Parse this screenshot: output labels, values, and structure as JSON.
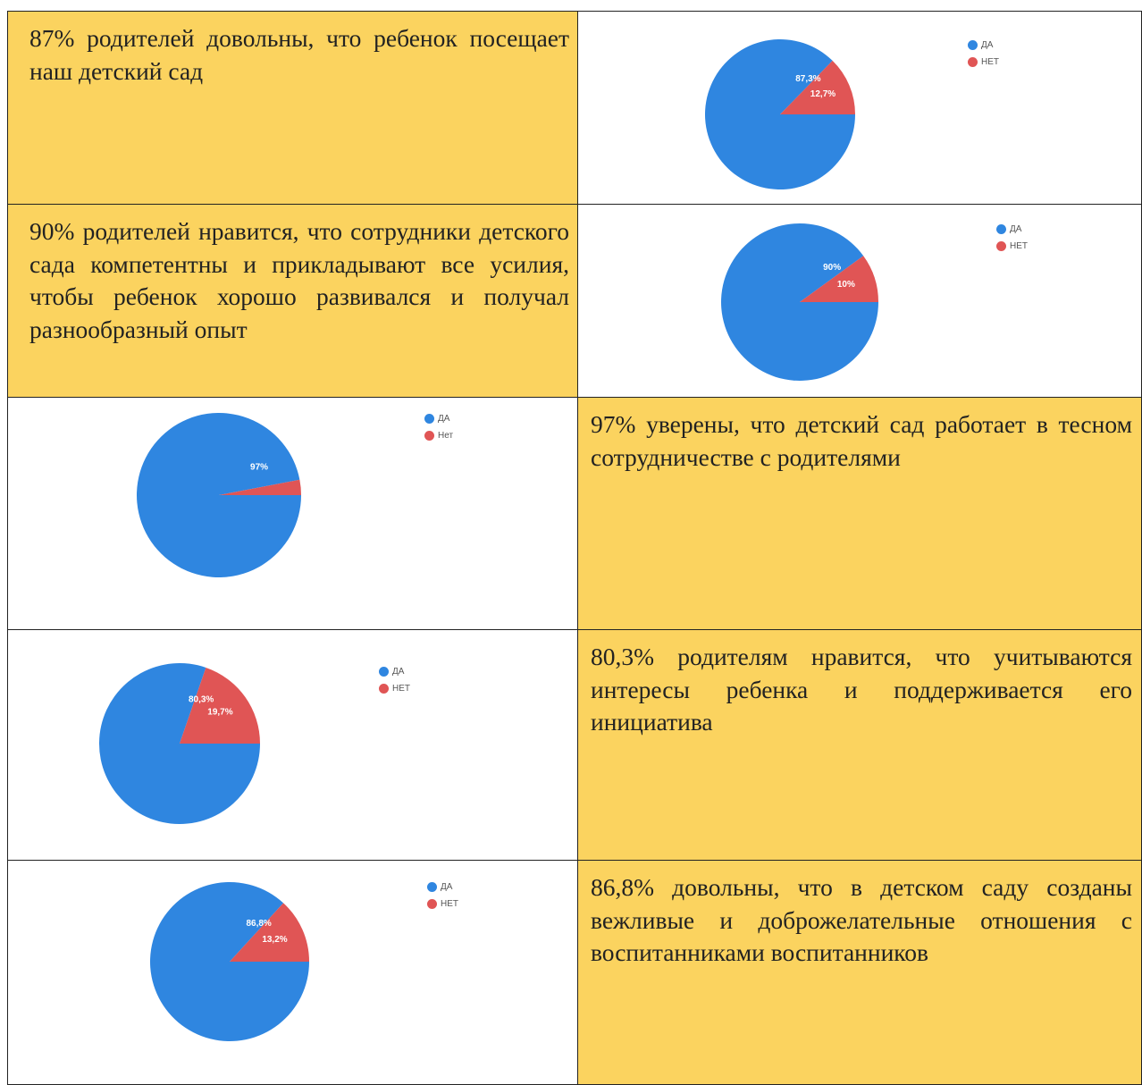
{
  "colors": {
    "yes": "#2f86e0",
    "no": "#e05555",
    "highlight": "#fbd35f",
    "border": "#222222"
  },
  "rows": [
    {
      "text": "87% родителей довольны, что ребенок посещает наш детский сад"
    },
    {
      "text": "90% родителей нравится, что  сотрудники детского сада компетентны и прикладывают все усилия, чтобы ребенок хорошо развивался и получал разнообразный опыт"
    },
    {
      "text": "97% уверены, что детский сад работает в тесном сотрудничестве с родителями"
    },
    {
      "text": "80,3% родителям нравится, что учитываются интересы ребенка и поддерживается его инициатива"
    },
    {
      "text": "86,8% довольны, что в детском саду созданы вежливые и доброжелательные отношения с воспитанниками воспитанников"
    }
  ],
  "chart_data": [
    {
      "type": "pie",
      "categories": [
        "ДА",
        "НЕТ"
      ],
      "values": [
        87.3,
        12.7
      ],
      "labels": [
        "87,3%",
        "12,7%"
      ],
      "legend_placement": "top-right"
    },
    {
      "type": "pie",
      "categories": [
        "ДА",
        "НЕТ"
      ],
      "values": [
        90,
        10
      ],
      "labels": [
        "90%",
        "10%"
      ],
      "legend_placement": "top-right"
    },
    {
      "type": "pie",
      "categories": [
        "ДА",
        "Нет"
      ],
      "values": [
        97,
        3
      ],
      "labels": [
        "97%",
        ""
      ],
      "legend_placement": "top-right"
    },
    {
      "type": "pie",
      "categories": [
        "ДА",
        "НЕТ"
      ],
      "values": [
        80.3,
        19.7
      ],
      "labels": [
        "80,3%",
        "19,7%"
      ],
      "legend_placement": "top-right"
    },
    {
      "type": "pie",
      "categories": [
        "ДА",
        "НЕТ"
      ],
      "values": [
        86.8,
        13.2
      ],
      "labels": [
        "86,8%",
        "13,2%"
      ],
      "legend_placement": "top-right"
    }
  ]
}
